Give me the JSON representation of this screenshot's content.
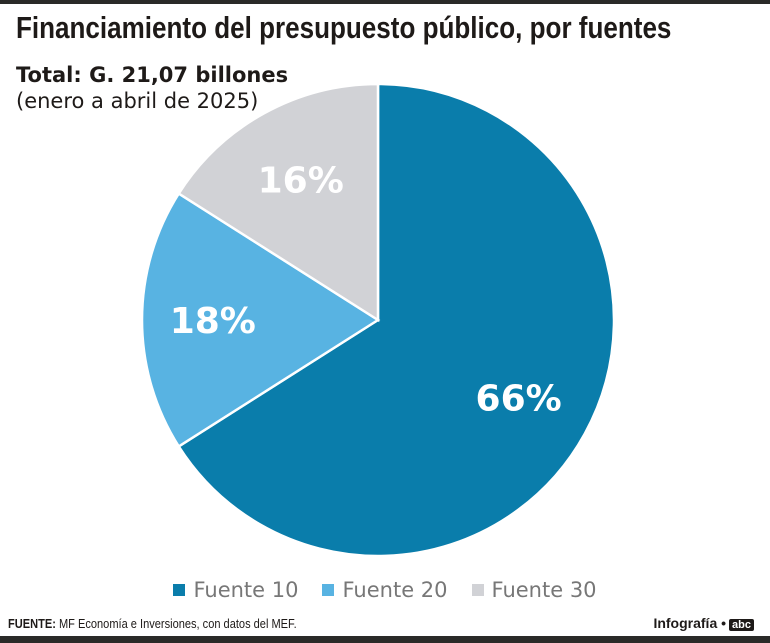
{
  "chart_data": {
    "type": "pie",
    "title": "Financiamiento del presupuesto público, por fuentes",
    "subtitle": "Total: G. 21,07 billones",
    "period": "(enero a abril de 2025)",
    "slices": [
      {
        "name": "Fuente 10",
        "value": 66,
        "label": "66%",
        "color": "#0a7dab"
      },
      {
        "name": "Fuente 20",
        "value": 18,
        "label": "18%",
        "color": "#58b3e2"
      },
      {
        "name": "Fuente 30",
        "value": 16,
        "label": "16%",
        "color": "#d1d2d6"
      }
    ],
    "legend_position": "bottom"
  },
  "footer": {
    "source_label": "FUENTE:",
    "source_text": " MF Economía e Inversiones, con datos del MEF.",
    "credit": "Infografía •",
    "logo": "abc"
  }
}
